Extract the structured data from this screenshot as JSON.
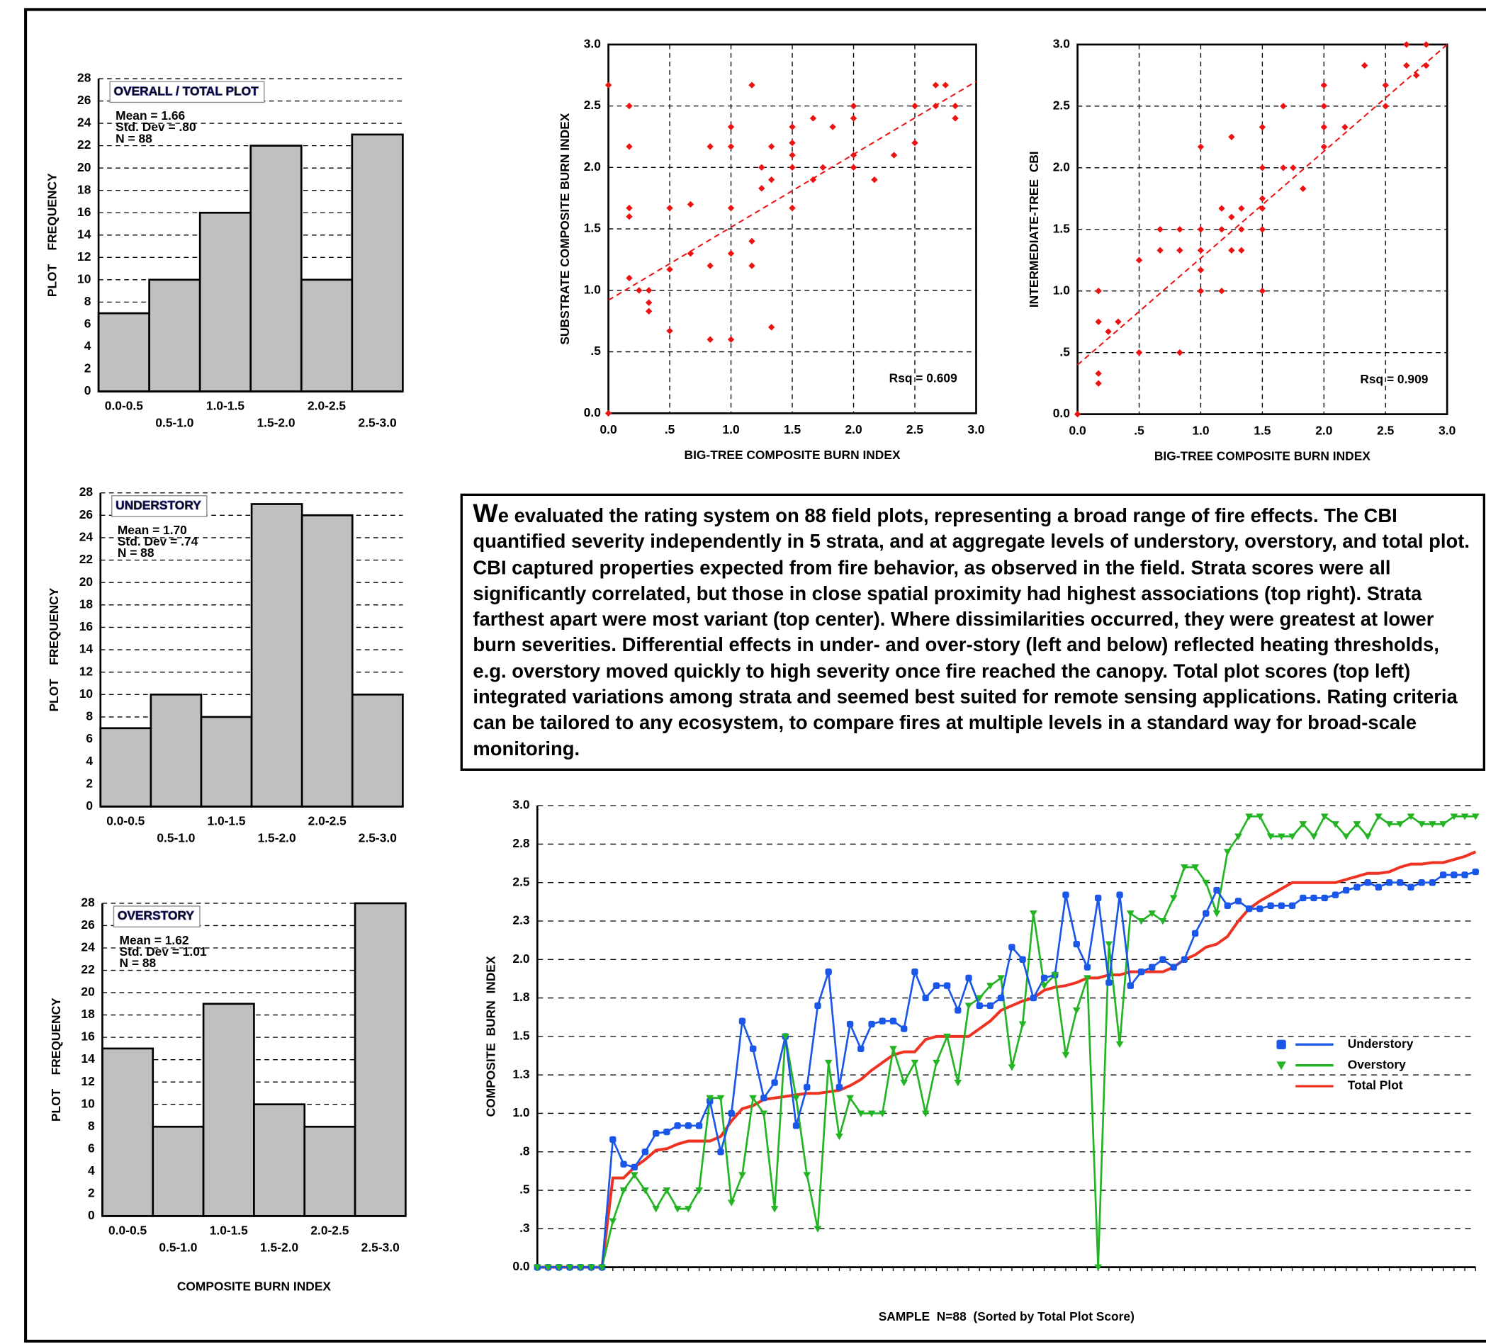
{
  "chart_data": [
    {
      "type": "histogram",
      "title": "OVERALL / TOTAL PLOT",
      "annotations": [
        "Mean = 1.66",
        "Std. Dev = .80",
        "N = 88"
      ],
      "ylabel": "PLOT    FREQUENCY",
      "categories": [
        "0.0-0.5",
        "0.5-1.0",
        "1.0-1.5",
        "1.5-2.0",
        "2.0-2.5",
        "2.5-3.0"
      ],
      "values": [
        7,
        10,
        16,
        22,
        10,
        23
      ],
      "color": "#c0c0c0",
      "ylim": [
        0,
        28
      ],
      "yticks": [
        0,
        2,
        4,
        6,
        8,
        10,
        12,
        14,
        16,
        18,
        20,
        22,
        24,
        26,
        28
      ],
      "grid": true
    },
    {
      "type": "histogram",
      "title": "UNDERSTORY",
      "annotations": [
        "Mean = 1.70",
        "Std. Dev = .74",
        "N = 88"
      ],
      "ylabel": "PLOT    FREQUENCY",
      "categories": [
        "0.0-0.5",
        "0.5-1.0",
        "1.0-1.5",
        "1.5-2.0",
        "2.0-2.5",
        "2.5-3.0"
      ],
      "values": [
        7,
        10,
        8,
        27,
        26,
        10
      ],
      "color": "#c0c0c0",
      "ylim": [
        0,
        28
      ],
      "yticks": [
        0,
        2,
        4,
        6,
        8,
        10,
        12,
        14,
        16,
        18,
        20,
        22,
        24,
        26,
        28
      ],
      "grid": true
    },
    {
      "type": "histogram",
      "title": "OVERSTORY",
      "annotations": [
        "Mean = 1.62",
        "Std. Dev = 1.01",
        "N = 88"
      ],
      "ylabel": "PLOT    FREQUENCY",
      "xlabel": "COMPOSITE BURN INDEX",
      "categories": [
        "0.0-0.5",
        "0.5-1.0",
        "1.0-1.5",
        "1.5-2.0",
        "2.0-2.5",
        "2.5-3.0"
      ],
      "values": [
        15,
        8,
        19,
        10,
        8,
        28
      ],
      "color": "#c0c0c0",
      "ylim": [
        0,
        28
      ],
      "yticks": [
        0,
        2,
        4,
        6,
        8,
        10,
        12,
        14,
        16,
        18,
        20,
        22,
        24,
        26,
        28
      ],
      "grid": true
    },
    {
      "type": "scatter",
      "xlabel": "BIG-TREE COMPOSITE BURN INDEX",
      "ylabel": "SUBSTRATE COMPOSITE BURN INDEX",
      "annotation": "Rsq = 0.609",
      "color": "#ee1111",
      "grid": true,
      "x": [
        0,
        0,
        0.17,
        0.17,
        0.17,
        0.17,
        0.17,
        0.25,
        0.33,
        0.33,
        0.33,
        0.5,
        0.5,
        0.5,
        0.67,
        0.67,
        0.83,
        0.83,
        0.83,
        1,
        1,
        1,
        1,
        1,
        1.17,
        1.17,
        1.17,
        1.25,
        1.25,
        1.33,
        1.33,
        1.33,
        1.5,
        1.5,
        1.5,
        1.5,
        1.5,
        1.67,
        1.67,
        1.75,
        1.83,
        2,
        2,
        2,
        2,
        2.17,
        2.33,
        2.5,
        2.5,
        2.67,
        2.67,
        2.75,
        2.83,
        2.83
      ],
      "values": [
        2.67,
        0,
        2.5,
        2.17,
        1.67,
        1.6,
        1.1,
        1,
        1,
        0.9,
        0.83,
        1.67,
        1.17,
        0.67,
        1.7,
        1.3,
        2.17,
        1.2,
        0.6,
        2.33,
        2.17,
        1.67,
        1.3,
        0.6,
        2.67,
        1.4,
        1.2,
        2,
        1.83,
        2.17,
        1.9,
        0.7,
        2.33,
        2.2,
        2.1,
        2,
        1.67,
        2.4,
        1.9,
        2,
        2.33,
        2.5,
        2.4,
        2.1,
        2,
        1.9,
        2.1,
        2.5,
        2.2,
        2.67,
        2.5,
        2.67,
        2.5,
        2.4
      ],
      "trend_line": {
        "x": [
          0,
          3
        ],
        "values": [
          0.92,
          2.7
        ]
      },
      "xlim": [
        0,
        3
      ],
      "ylim": [
        0,
        3
      ],
      "xticks": [
        {
          "value": 0,
          "label": "0.0"
        },
        {
          "value": 0.5,
          "label": ".5"
        },
        {
          "value": 1,
          "label": "1.0"
        },
        1.5,
        {
          "value": 2,
          "label": "2.0"
        },
        2.5,
        {
          "value": 3,
          "label": "3.0"
        }
      ],
      "yticks": [
        {
          "value": 0,
          "label": "0.0"
        },
        {
          "value": 0.5,
          "label": ".5"
        },
        {
          "value": 1,
          "label": "1.0"
        },
        1.5,
        {
          "value": 2,
          "label": "2.0"
        },
        2.5,
        {
          "value": 3,
          "label": "3.0"
        }
      ]
    },
    {
      "type": "scatter",
      "xlabel": "BIG-TREE COMPOSITE BURN INDEX",
      "ylabel": "INTERMEDIATE-TREE  CBI",
      "annotation": "Rsq = 0.909",
      "color": "#ee1111",
      "grid": true,
      "x": [
        0,
        0.17,
        0.17,
        0.17,
        0.17,
        0.25,
        0.33,
        0.5,
        0.5,
        0.67,
        0.67,
        0.83,
        0.83,
        0.83,
        1,
        1,
        1,
        1,
        1,
        1.17,
        1.17,
        1.17,
        1.25,
        1.25,
        1.25,
        1.33,
        1.33,
        1.33,
        1.5,
        1.5,
        1.5,
        1.5,
        1.5,
        1.5,
        1.67,
        1.67,
        1.75,
        1.83,
        2,
        2,
        2,
        2,
        2.17,
        2.33,
        2.5,
        2.5,
        2.67,
        2.67,
        2.75,
        2.83,
        2.83
      ],
      "values": [
        0,
        1,
        0.75,
        0.33,
        0.25,
        0.67,
        0.75,
        1.25,
        0.5,
        1.5,
        1.33,
        1.5,
        1.33,
        0.5,
        2.17,
        1.5,
        1.33,
        1.17,
        1,
        1.67,
        1.5,
        1,
        2.25,
        1.6,
        1.33,
        1.67,
        1.5,
        1.33,
        2.33,
        2,
        1.75,
        1.67,
        1.5,
        1,
        2.5,
        2,
        2,
        1.83,
        2.67,
        2.5,
        2.33,
        2.17,
        2.33,
        2.83,
        2.67,
        2.5,
        3,
        2.83,
        2.75,
        3,
        2.83
      ],
      "trend_line": {
        "x": [
          0,
          3
        ],
        "values": [
          0.4,
          3
        ]
      },
      "xlim": [
        0,
        3
      ],
      "ylim": [
        0,
        3
      ],
      "xticks": [
        {
          "value": 0,
          "label": "0.0"
        },
        {
          "value": 0.5,
          "label": ".5"
        },
        {
          "value": 1,
          "label": "1.0"
        },
        1.5,
        {
          "value": 2,
          "label": "2.0"
        },
        2.5,
        {
          "value": 3,
          "label": "3.0"
        }
      ],
      "yticks": [
        {
          "value": 0,
          "label": "0.0"
        },
        {
          "value": 0.5,
          "label": ".5"
        },
        {
          "value": 1,
          "label": "1.0"
        },
        1.5,
        {
          "value": 2,
          "label": "2.0"
        },
        2.5,
        {
          "value": 3,
          "label": "3.0"
        }
      ]
    },
    {
      "type": "line",
      "xlabel": "SAMPLE  N=88  (Sorted by Total Plot Score)",
      "ylabel": "COMPOSITE  BURN  INDEX",
      "legend": "right",
      "grid": true,
      "categories": [
        null,
        null,
        null,
        null,
        null,
        null,
        null,
        null,
        null,
        null,
        null,
        null,
        null,
        null,
        null,
        null,
        null,
        null,
        null,
        null,
        null,
        null,
        null,
        null,
        null,
        null,
        null,
        null,
        null,
        null,
        null,
        null,
        null,
        null,
        null,
        null,
        null,
        null,
        null,
        null,
        null,
        null,
        null,
        null,
        null,
        null,
        null,
        null,
        null,
        null,
        null,
        null,
        null,
        null,
        null,
        null,
        null,
        null,
        null,
        null,
        null,
        null,
        null,
        null,
        null,
        null,
        null,
        null,
        null,
        null,
        null,
        null,
        null,
        null,
        null,
        null,
        null,
        null,
        null,
        null,
        null,
        null,
        null,
        null,
        null,
        null,
        null,
        null
      ],
      "series": [
        {
          "name": "Understory",
          "color": "#1a56e8",
          "marker": "square",
          "values": [
            0,
            0,
            0,
            0,
            0,
            0,
            0,
            0.83,
            0.67,
            0.65,
            0.75,
            0.87,
            0.88,
            0.92,
            0.92,
            0.92,
            1.08,
            0.75,
            1,
            1.6,
            1.42,
            1.1,
            1.2,
            1.5,
            0.92,
            1.17,
            1.7,
            1.92,
            1.17,
            1.58,
            1.42,
            1.58,
            1.6,
            1.6,
            1.55,
            1.92,
            1.75,
            1.83,
            1.83,
            1.67,
            1.88,
            1.7,
            1.7,
            1.75,
            2.08,
            2,
            1.75,
            1.88,
            1.9,
            2.42,
            2.1,
            1.95,
            2.4,
            1.85,
            2.42,
            1.83,
            1.92,
            1.95,
            2,
            1.95,
            2,
            2.17,
            2.3,
            2.45,
            2.35,
            2.38,
            2.33,
            2.33,
            2.35,
            2.35,
            2.35,
            2.4,
            2.4,
            2.4,
            2.42,
            2.45,
            2.47,
            2.5,
            2.47,
            2.5,
            2.5,
            2.47,
            2.5,
            2.5,
            2.55,
            2.55,
            2.55,
            2.57
          ]
        },
        {
          "name": "Overstory",
          "color": "#22b422",
          "marker": "triangle",
          "values": [
            0,
            0,
            0,
            0,
            0,
            0,
            0,
            0.3,
            0.5,
            0.6,
            0.5,
            0.38,
            0.5,
            0.38,
            0.38,
            0.5,
            1.1,
            1.1,
            0.42,
            0.6,
            1.1,
            1,
            0.38,
            1.5,
            1.1,
            0.6,
            0.25,
            1.33,
            0.85,
            1.1,
            1,
            1,
            1,
            1.42,
            1.2,
            1.33,
            1,
            1.33,
            1.5,
            1.2,
            1.7,
            1.75,
            1.83,
            1.88,
            1.3,
            1.58,
            2.3,
            1.83,
            1.9,
            1.38,
            1.67,
            1.88,
            0,
            2.1,
            1.45,
            2.3,
            2.25,
            2.3,
            2.25,
            2.4,
            2.6,
            2.6,
            2.5,
            2.3,
            2.7,
            2.8,
            2.93,
            2.93,
            2.8,
            2.8,
            2.8,
            2.88,
            2.8,
            2.93,
            2.88,
            2.8,
            2.88,
            2.8,
            2.93,
            2.88,
            2.88,
            2.93,
            2.88,
            2.88,
            2.88,
            2.93,
            2.93,
            2.93
          ]
        },
        {
          "name": "Total Plot",
          "color": "#ee3322",
          "values": [
            0,
            0,
            0,
            0,
            0,
            0,
            0,
            0.58,
            0.58,
            0.65,
            0.7,
            0.76,
            0.77,
            0.8,
            0.82,
            0.82,
            0.82,
            0.85,
            0.95,
            1.03,
            1.05,
            1.09,
            1.1,
            1.11,
            1.12,
            1.13,
            1.13,
            1.14,
            1.15,
            1.18,
            1.22,
            1.28,
            1.33,
            1.38,
            1.4,
            1.4,
            1.48,
            1.5,
            1.5,
            1.5,
            1.5,
            1.55,
            1.6,
            1.67,
            1.7,
            1.73,
            1.75,
            1.8,
            1.82,
            1.83,
            1.85,
            1.88,
            1.88,
            1.9,
            1.9,
            1.92,
            1.92,
            1.92,
            1.92,
            1.95,
            2,
            2.03,
            2.08,
            2.1,
            2.15,
            2.25,
            2.33,
            2.38,
            2.42,
            2.46,
            2.5,
            2.5,
            2.5,
            2.5,
            2.5,
            2.52,
            2.54,
            2.56,
            2.56,
            2.57,
            2.6,
            2.62,
            2.62,
            2.63,
            2.63,
            2.65,
            2.67,
            2.7
          ]
        }
      ],
      "ylim": [
        0,
        3
      ],
      "yticks": [
        {
          "value": 0,
          "label": "0.0"
        },
        {
          "value": 0.25,
          "label": ".3"
        },
        {
          "value": 0.5,
          "label": ".5"
        },
        {
          "value": 0.75,
          "label": ".8"
        },
        {
          "value": 1,
          "label": "1.0"
        },
        {
          "value": 1.25,
          "label": "1.3"
        },
        1.5,
        {
          "value": 1.75,
          "label": "1.8"
        },
        {
          "value": 2,
          "label": "2.0"
        },
        {
          "value": 2.25,
          "label": "2.3"
        },
        2.5,
        {
          "value": 2.75,
          "label": "2.8"
        },
        {
          "value": 3,
          "label": "3.0"
        }
      ]
    }
  ],
  "paragraph": "We evaluated the rating system on 88 field plots, representing a broad range of fire effects.  The CBI quantified severity independently in 5 strata, and at aggregate levels of understory, overstory, and total plot.  CBI captured properties expected from fire behavior, as observed in the field.  Strata scores were all significantly correlated, but those in close spatial proximity had highest associations (top right).  Strata farthest apart were most variant (top center).  Where dissimilarities occurred, they were greatest at lower burn severities.  Differential effects in under- and over-story (left and below) reflected heating thresholds, e.g. overstory moved quickly to high severity once fire reached the canopy.   Total plot scores (top left) integrated variations among strata and seemed best suited for remote sensing applications.  Rating criteria can be tailored to any ecosystem, to compare fires at multiple levels in a standard way for broad-scale monitoring."
}
